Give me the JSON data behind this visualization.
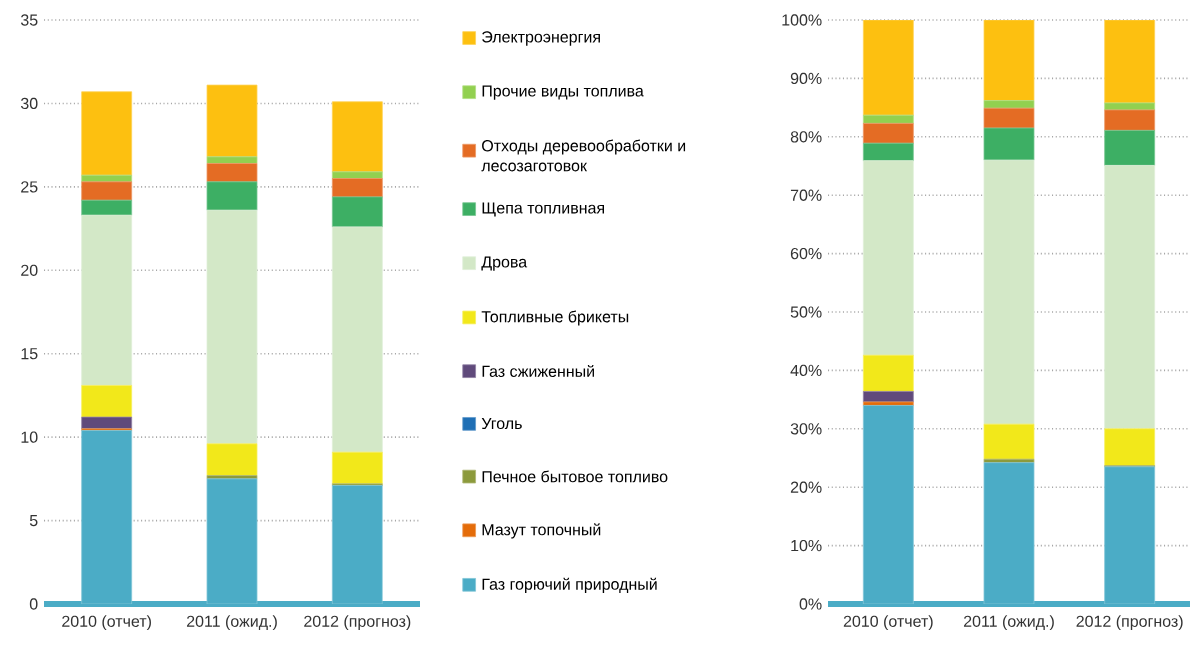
{
  "chart_data": [
    {
      "type": "bar",
      "stacked": true,
      "categories": [
        "2010 (отчет)",
        "2011 (ожид.)",
        "2012 (прогноз)"
      ],
      "ylim": [
        0,
        35
      ],
      "yticks": [
        0,
        5,
        10,
        15,
        20,
        25,
        30,
        35
      ],
      "grid": "y",
      "legend": "right",
      "series": [
        {
          "name": "Газ  горючий  природный",
          "color": "#4bacc6",
          "values": [
            10.4,
            7.5,
            7.1
          ]
        },
        {
          "name": "Мазут  топочный",
          "color": "#e46c0a",
          "values": [
            0.1,
            0,
            0
          ]
        },
        {
          "name": "Печное  бытовое  топливо",
          "color": "#8c9a3c",
          "values": [
            0,
            0.2,
            0.1
          ]
        },
        {
          "name": "Уголь",
          "color": "#1f6fb5",
          "values": [
            0,
            0,
            0
          ]
        },
        {
          "name": "Газ  сжиженный",
          "color": "#604a7b",
          "values": [
            0.7,
            0,
            0
          ]
        },
        {
          "name": "Топливные  брикеты",
          "color": "#f2e81a",
          "values": [
            1.9,
            1.9,
            1.9
          ]
        },
        {
          "name": "Дрова",
          "color": "#d3e8c7",
          "values": [
            10.2,
            14.0,
            13.5
          ]
        },
        {
          "name": "Щепа топливная",
          "color": "#3daf64",
          "values": [
            0.9,
            1.7,
            1.8
          ]
        },
        {
          "name": "Отходы деревообработки и лесозаготовок",
          "color": "#e46c24",
          "values": [
            1.1,
            1.1,
            1.1
          ]
        },
        {
          "name": "Прочие  виды  топлива",
          "color": "#92d050",
          "values": [
            0.4,
            0.4,
            0.4
          ]
        },
        {
          "name": "Электроэнергия",
          "color": "#fdc010",
          "values": [
            5.0,
            4.3,
            4.2
          ]
        }
      ]
    },
    {
      "type": "bar",
      "stacked": true,
      "categories": [
        "2010 (отчет)",
        "2011 (ожид.)",
        "2012 (прогноз)"
      ],
      "ylim": [
        0,
        100
      ],
      "grid": "y",
      "yticks": [
        {
          "value": 0,
          "label": "0%"
        },
        {
          "value": 10,
          "label": "10%"
        },
        {
          "value": 20,
          "label": "20%"
        },
        {
          "value": 30,
          "label": "30%"
        },
        {
          "value": 40,
          "label": "40%"
        },
        {
          "value": 50,
          "label": "50%"
        },
        {
          "value": 60,
          "label": "60%"
        },
        {
          "value": 70,
          "label": "70%"
        },
        {
          "value": 80,
          "label": "80%"
        },
        {
          "value": 90,
          "label": "90%"
        },
        {
          "value": 100,
          "label": "100%"
        }
      ],
      "series": [
        {
          "color": "#4bacc6",
          "values": [
            34.0,
            24.2,
            23.5
          ]
        },
        {
          "color": "#e46c0a",
          "values": [
            0.6,
            0,
            0
          ]
        },
        {
          "color": "#8c9a3c",
          "values": [
            0,
            0.6,
            0.2
          ]
        },
        {
          "color": "#1f6fb5",
          "values": [
            0,
            0,
            0
          ]
        },
        {
          "color": "#604a7b",
          "values": [
            1.8,
            0,
            0
          ]
        },
        {
          "color": "#f2e81a",
          "values": [
            6.2,
            6.0,
            6.3
          ]
        },
        {
          "color": "#d3e8c7",
          "values": [
            33.3,
            45.2,
            45.1
          ]
        },
        {
          "color": "#3daf64",
          "values": [
            3.0,
            5.5,
            6.0
          ]
        },
        {
          "color": "#e46c24",
          "values": [
            3.4,
            3.4,
            3.5
          ]
        },
        {
          "color": "#92d050",
          "values": [
            1.4,
            1.3,
            1.2
          ]
        },
        {
          "color": "#fdc010",
          "values": [
            16.3,
            13.8,
            14.2
          ]
        }
      ]
    }
  ]
}
